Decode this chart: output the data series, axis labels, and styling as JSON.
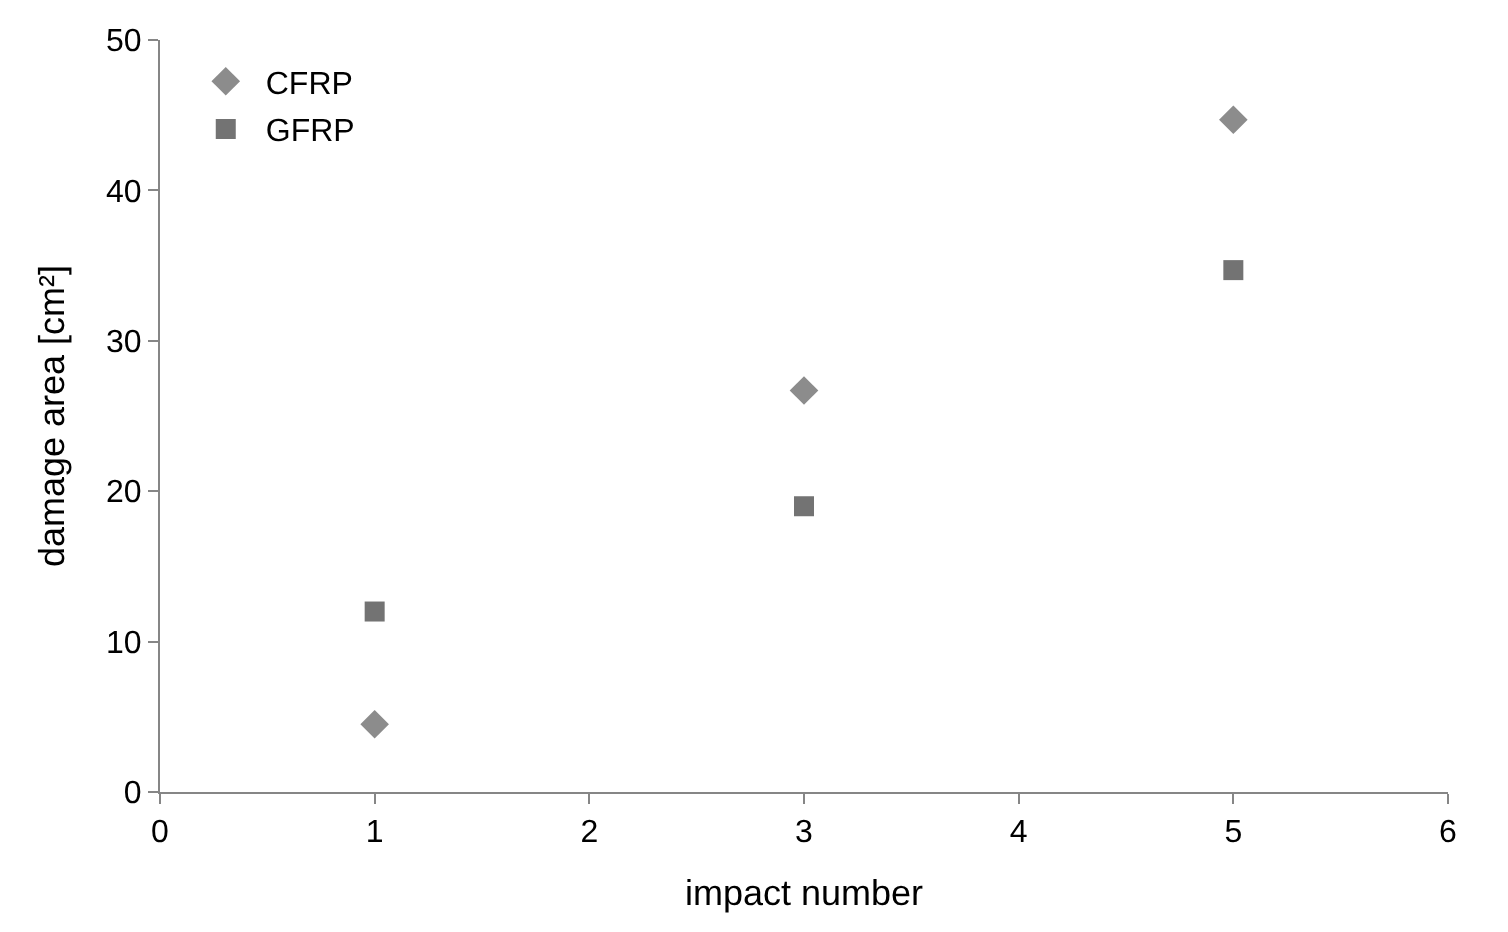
{
  "chart_data": {
    "type": "scatter",
    "xlabel": "impact number",
    "ylabel": "damage area [cm²]",
    "x": [
      1,
      3,
      5
    ],
    "series": [
      {
        "name": "CFRP",
        "color": "#8c8c8c",
        "marker": "diamond",
        "values": [
          4.5,
          26.7,
          44.7
        ]
      },
      {
        "name": "GFRP",
        "color": "#737373",
        "marker": "square",
        "values": [
          12,
          19,
          34.7
        ]
      }
    ],
    "xlim": [
      0,
      6
    ],
    "xticks": [
      0,
      1,
      2,
      3,
      4,
      5,
      6
    ],
    "ylim": [
      0,
      50
    ],
    "yticks": [
      0,
      10,
      20,
      30,
      40,
      50
    ],
    "legend": "top left"
  }
}
